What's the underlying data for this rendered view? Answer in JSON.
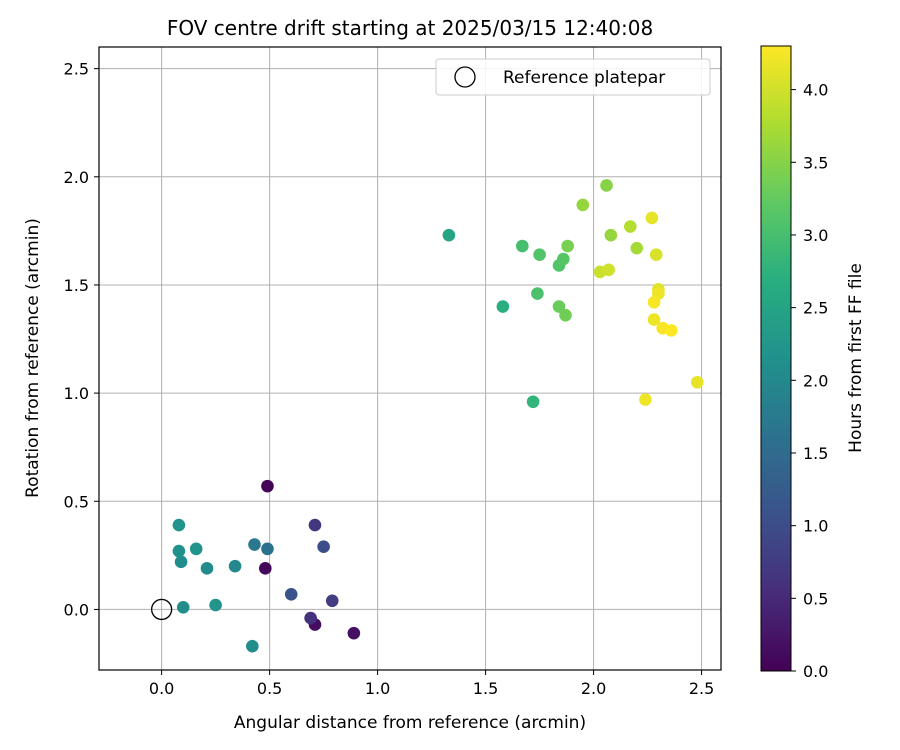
{
  "chart_data": {
    "type": "scatter",
    "title": "FOV centre drift starting at 2025/03/15 12:40:08",
    "xlabel": "Angular distance from reference (arcmin)",
    "ylabel": "Rotation from reference (arcmin)",
    "xlim": [
      -0.29,
      2.59
    ],
    "ylim": [
      -0.28,
      2.6
    ],
    "x_ticks": [
      0.0,
      0.5,
      1.0,
      1.5,
      2.0,
      2.5
    ],
    "x_tick_labels": [
      "0.0",
      "0.5",
      "1.0",
      "1.5",
      "2.0",
      "2.5"
    ],
    "y_ticks": [
      0.0,
      0.5,
      1.0,
      1.5,
      2.0,
      2.5
    ],
    "y_tick_labels": [
      "0.0",
      "0.5",
      "1.0",
      "1.5",
      "2.0",
      "2.5"
    ],
    "grid": true,
    "legend": {
      "placement": "upper right",
      "entries": [
        "Reference platepar"
      ]
    },
    "reference_point": {
      "x": 0.0,
      "y": 0.0,
      "marker": "open-circle"
    },
    "colorbar": {
      "label": "Hours from first FF file",
      "colormap": "viridis",
      "range": [
        0.0,
        4.3
      ],
      "ticks": [
        0.0,
        0.5,
        1.0,
        1.5,
        2.0,
        2.5,
        3.0,
        3.5,
        4.0
      ],
      "tick_labels": [
        "0.0",
        "0.5",
        "1.0",
        "1.5",
        "2.0",
        "2.5",
        "3.0",
        "3.5",
        "4.0"
      ]
    },
    "points": [
      {
        "x": 0.49,
        "y": 0.57,
        "c": 0.05
      },
      {
        "x": 0.48,
        "y": 0.19,
        "c": 0.1
      },
      {
        "x": 0.71,
        "y": -0.07,
        "c": 0.15
      },
      {
        "x": 0.89,
        "y": -0.11,
        "c": 0.2
      },
      {
        "x": 0.69,
        "y": -0.04,
        "c": 0.6
      },
      {
        "x": 0.79,
        "y": 0.04,
        "c": 0.75
      },
      {
        "x": 0.71,
        "y": 0.39,
        "c": 0.7
      },
      {
        "x": 0.75,
        "y": 0.29,
        "c": 1.0
      },
      {
        "x": 0.6,
        "y": 0.07,
        "c": 1.1
      },
      {
        "x": 0.49,
        "y": 0.28,
        "c": 1.6
      },
      {
        "x": 0.43,
        "y": 0.3,
        "c": 1.7
      },
      {
        "x": 0.34,
        "y": 0.2,
        "c": 2.0
      },
      {
        "x": 0.42,
        "y": -0.17,
        "c": 2.1
      },
      {
        "x": 0.21,
        "y": 0.19,
        "c": 2.05
      },
      {
        "x": 0.25,
        "y": 0.02,
        "c": 2.2
      },
      {
        "x": 0.1,
        "y": 0.01,
        "c": 2.1
      },
      {
        "x": 0.16,
        "y": 0.28,
        "c": 2.2
      },
      {
        "x": 0.09,
        "y": 0.22,
        "c": 2.1
      },
      {
        "x": 0.08,
        "y": 0.27,
        "c": 2.15
      },
      {
        "x": 0.08,
        "y": 0.39,
        "c": 2.2
      },
      {
        "x": 1.33,
        "y": 1.73,
        "c": 2.5
      },
      {
        "x": 1.58,
        "y": 1.4,
        "c": 2.7
      },
      {
        "x": 1.72,
        "y": 0.96,
        "c": 2.8
      },
      {
        "x": 1.67,
        "y": 1.68,
        "c": 3.0
      },
      {
        "x": 1.74,
        "y": 1.46,
        "c": 3.05
      },
      {
        "x": 1.75,
        "y": 1.64,
        "c": 3.1
      },
      {
        "x": 1.84,
        "y": 1.59,
        "c": 3.1
      },
      {
        "x": 1.86,
        "y": 1.62,
        "c": 3.15
      },
      {
        "x": 1.84,
        "y": 1.4,
        "c": 3.3
      },
      {
        "x": 1.87,
        "y": 1.36,
        "c": 3.35
      },
      {
        "x": 1.88,
        "y": 1.68,
        "c": 3.4
      },
      {
        "x": 1.95,
        "y": 1.87,
        "c": 3.6
      },
      {
        "x": 2.06,
        "y": 1.96,
        "c": 3.5
      },
      {
        "x": 2.08,
        "y": 1.73,
        "c": 3.6
      },
      {
        "x": 2.17,
        "y": 1.77,
        "c": 3.8
      },
      {
        "x": 2.2,
        "y": 1.67,
        "c": 3.7
      },
      {
        "x": 2.03,
        "y": 1.56,
        "c": 3.95
      },
      {
        "x": 2.07,
        "y": 1.57,
        "c": 4.0
      },
      {
        "x": 2.27,
        "y": 1.81,
        "c": 4.15
      },
      {
        "x": 2.29,
        "y": 1.64,
        "c": 4.05
      },
      {
        "x": 2.3,
        "y": 1.48,
        "c": 4.1
      },
      {
        "x": 2.3,
        "y": 1.46,
        "c": 4.2
      },
      {
        "x": 2.28,
        "y": 1.42,
        "c": 4.25
      },
      {
        "x": 2.28,
        "y": 1.34,
        "c": 4.2
      },
      {
        "x": 2.32,
        "y": 1.3,
        "c": 4.25
      },
      {
        "x": 2.36,
        "y": 1.29,
        "c": 4.3
      },
      {
        "x": 2.24,
        "y": 0.97,
        "c": 4.2
      },
      {
        "x": 2.48,
        "y": 1.05,
        "c": 4.15
      }
    ]
  }
}
